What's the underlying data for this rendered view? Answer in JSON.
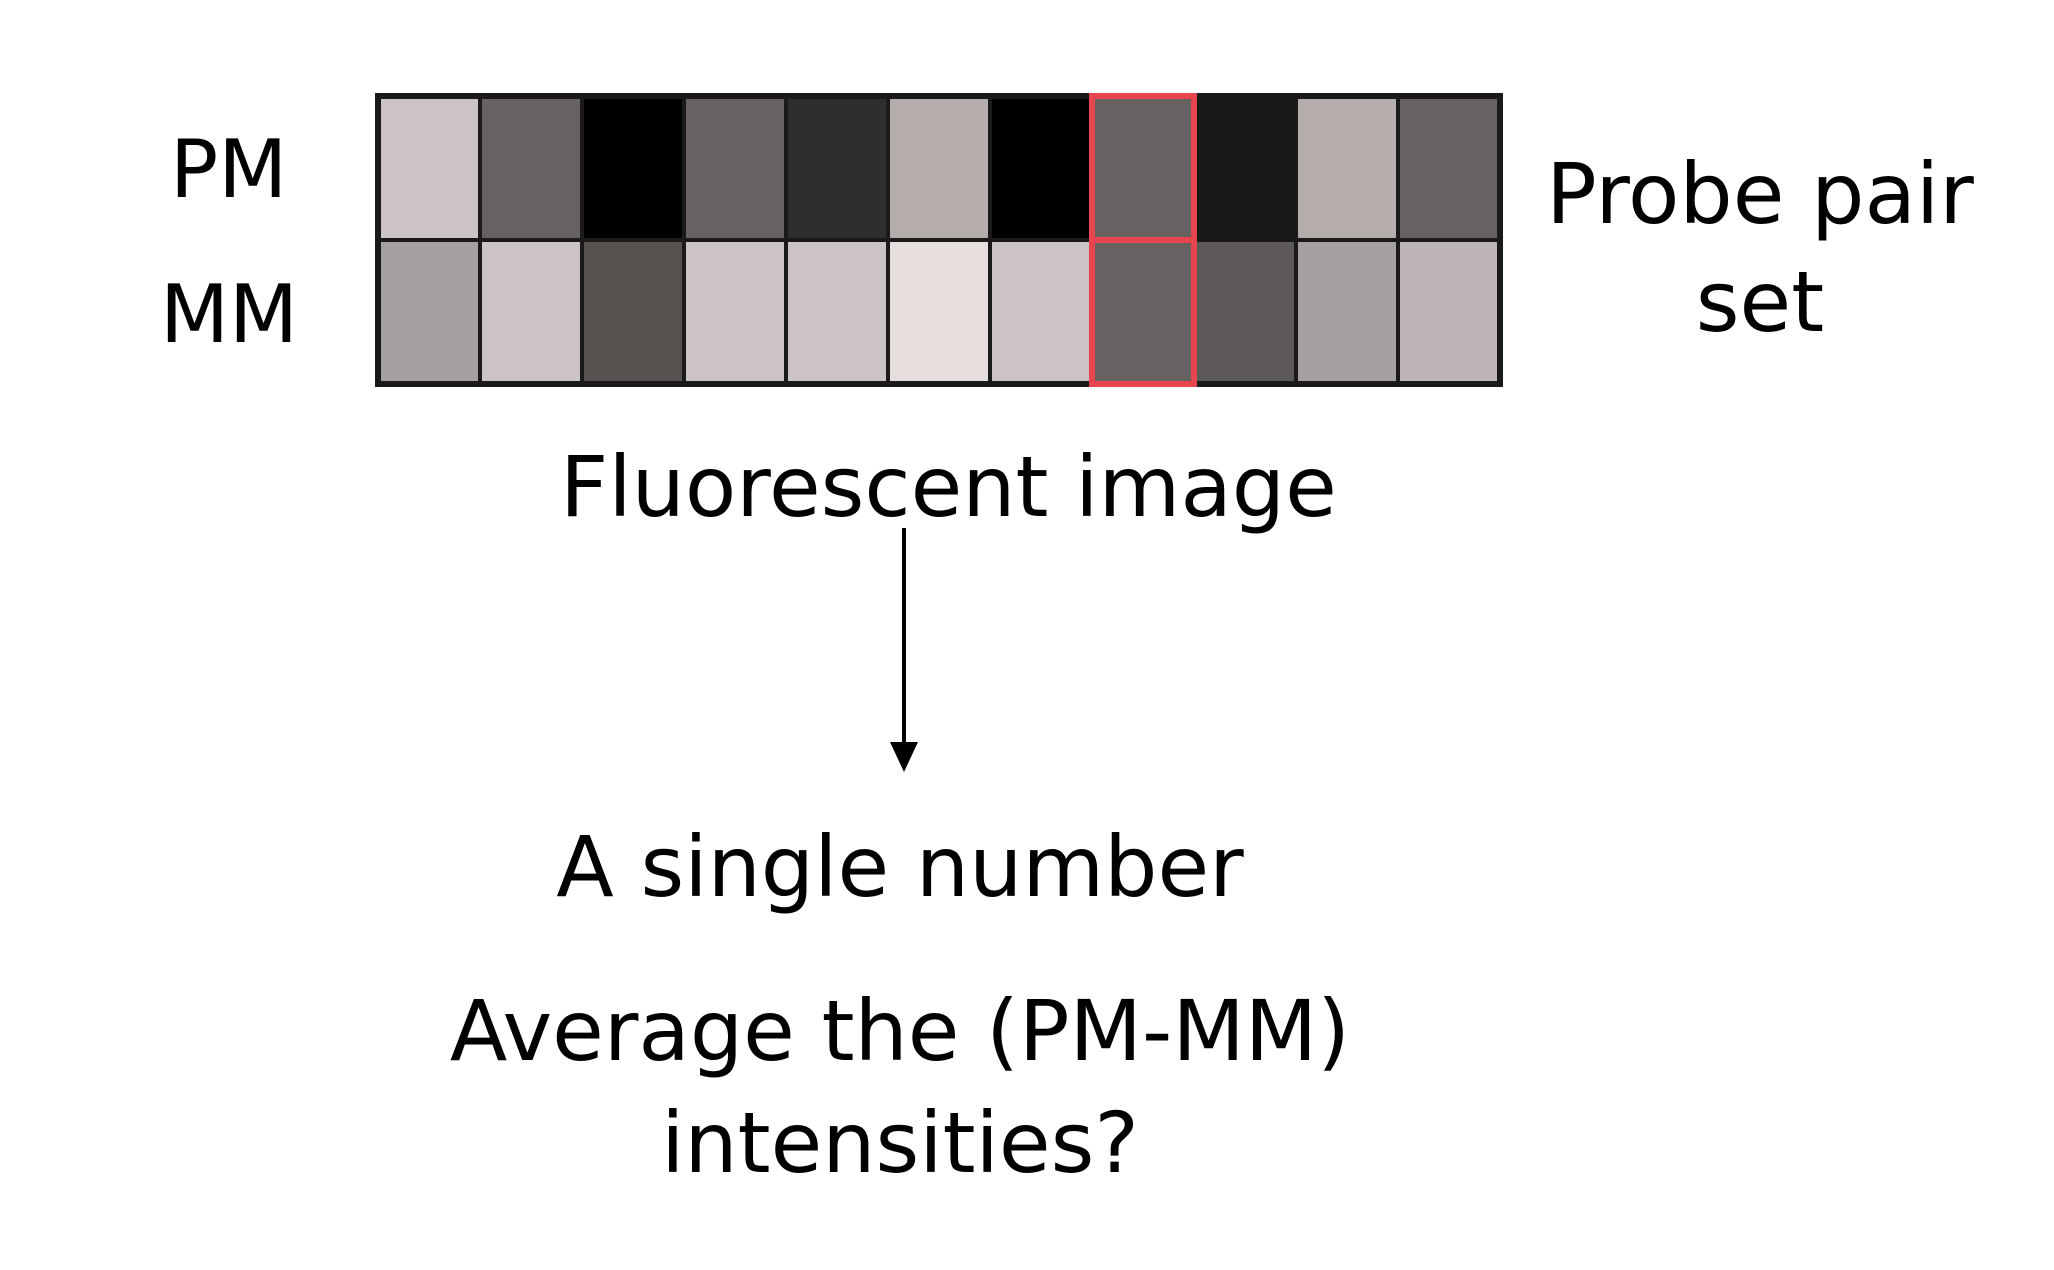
{
  "labels": {
    "pm": "PM",
    "mm": "MM",
    "probe_pair_set": "Probe pair set",
    "fluorescent_image": "Fluorescent image",
    "single_number": "A single number",
    "average_question": "Average the (PM-MM) intensities?"
  },
  "grid": {
    "pm_colors": [
      "#cbc3c4",
      "#676261",
      "#000000",
      "#676261",
      "#302d2e",
      "#b5adab",
      "#000000",
      "#676261",
      "#1a1816",
      "#b5adab",
      "#676261"
    ],
    "mm_colors": [
      "#a59f9f",
      "#cbc3c4",
      "#575150",
      "#cbc3c4",
      "#cbc3c4",
      "#e6dddd",
      "#cbc3c4",
      "#676261",
      "#5d5958",
      "#a59f9f",
      "#bdb5b5"
    ],
    "highlight_index": 7,
    "highlight_color": "#e8464e",
    "border_color": "#1a1a1a"
  },
  "arrow_color": "#000000"
}
